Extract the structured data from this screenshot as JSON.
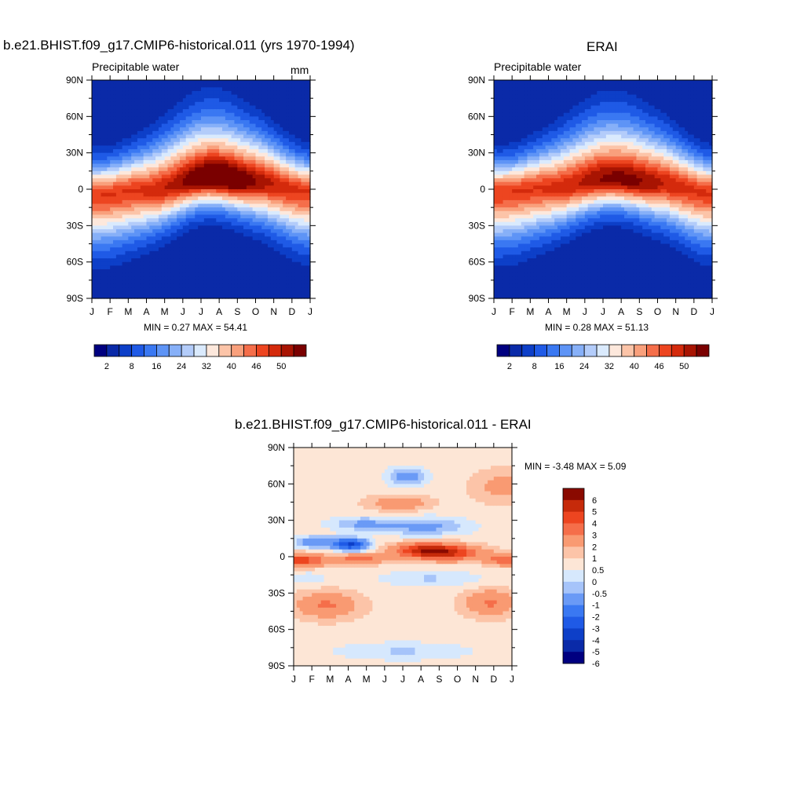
{
  "panels": [
    {
      "title": "b.e21.BHIST.f09_g17.CMIP6-historical.011 (yrs 1970-1994)",
      "variable": "Precipitable water",
      "units": "mm",
      "stats": "MIN =   0.27 MAX =  54.41"
    },
    {
      "title": "ERAI",
      "variable": "Precipitable water",
      "stats": "MIN =   0.28 MAX =  51.13"
    },
    {
      "title": "b.e21.BHIST.f09_g17.CMIP6-historical.011 - ERAI",
      "stats": "MIN =  -3.48 MAX =   5.09"
    }
  ],
  "chart_data": [
    {
      "type": "heatmap",
      "title": "b.e21.BHIST.f09_g17.CMIP6-historical.011 (yrs 1970-1994)",
      "x_ticks": [
        "J",
        "F",
        "M",
        "A",
        "M",
        "J",
        "J",
        "A",
        "S",
        "O",
        "N",
        "D",
        "J"
      ],
      "y_ticks": [
        "90N",
        "60N",
        "30N",
        "0",
        "30S",
        "60S",
        "90S"
      ],
      "colorbar_levels": [
        2,
        5,
        8,
        12,
        16,
        20,
        24,
        28,
        32,
        36,
        40,
        43,
        46,
        48,
        50,
        52
      ],
      "colorbar_labels": [
        "2",
        "8",
        "16",
        "24",
        "32",
        "40",
        "46",
        "50"
      ],
      "colors": [
        "#000080",
        "#0a2aa8",
        "#0d3fc8",
        "#1f5ae6",
        "#3a78f2",
        "#5e94f6",
        "#87b0f8",
        "#b3ccfa",
        "#daeafd",
        "#fde8dc",
        "#fcc4a8",
        "#f9a07c",
        "#f56e4a",
        "#ed4520",
        "#d42a0c",
        "#a81402",
        "#7a0000"
      ],
      "min": 0.27,
      "max": 54.41,
      "ridge": [
        {
          "month": 0,
          "lat": -5
        },
        {
          "month": 3,
          "lat": -1
        },
        {
          "month": 6.5,
          "lat": 9
        },
        {
          "month": 9,
          "lat": 6
        },
        {
          "month": 12,
          "lat": -2
        }
      ]
    },
    {
      "type": "heatmap",
      "title": "ERAI",
      "x_ticks": [
        "J",
        "F",
        "M",
        "A",
        "M",
        "J",
        "J",
        "A",
        "S",
        "O",
        "N",
        "D",
        "J"
      ],
      "y_ticks": [
        "90N",
        "60N",
        "30N",
        "0",
        "30S",
        "60S",
        "90S"
      ],
      "colorbar_levels": [
        2,
        5,
        8,
        12,
        16,
        20,
        24,
        28,
        32,
        36,
        40,
        43,
        46,
        48,
        50,
        52
      ],
      "colorbar_labels": [
        "2",
        "8",
        "16",
        "24",
        "32",
        "40",
        "46",
        "50"
      ],
      "colors": [
        "#000080",
        "#0a2aa8",
        "#0d3fc8",
        "#1f5ae6",
        "#3a78f2",
        "#5e94f6",
        "#87b0f8",
        "#b3ccfa",
        "#daeafd",
        "#fde8dc",
        "#fcc4a8",
        "#f9a07c",
        "#f56e4a",
        "#ed4520",
        "#d42a0c",
        "#a81402",
        "#7a0000"
      ],
      "min": 0.28,
      "max": 51.13,
      "ridge": [
        {
          "month": 0,
          "lat": -3
        },
        {
          "month": 3,
          "lat": 1
        },
        {
          "month": 6.5,
          "lat": 8
        },
        {
          "month": 9,
          "lat": 5
        },
        {
          "month": 12,
          "lat": -3
        }
      ]
    },
    {
      "type": "heatmap",
      "title": "b.e21.BHIST.f09_g17.CMIP6-historical.011 - ERAI",
      "x_ticks": [
        "J",
        "F",
        "M",
        "A",
        "M",
        "J",
        "J",
        "A",
        "S",
        "O",
        "N",
        "D",
        "J"
      ],
      "y_ticks": [
        "90N",
        "60N",
        "30N",
        "0",
        "30S",
        "60S",
        "90S"
      ],
      "colorbar_levels": [
        -6,
        -5,
        -4,
        -3,
        -2,
        -1,
        -0.5,
        0,
        0.5,
        1,
        2,
        3,
        4,
        5,
        6
      ],
      "colorbar_labels": [
        "6",
        "5",
        "4",
        "3",
        "2",
        "1",
        "0.5",
        "0",
        "-0.5",
        "-1",
        "-2",
        "-3",
        "-4",
        "-5",
        "-6"
      ],
      "colors": [
        "#000080",
        "#0a2aa8",
        "#0d3fc8",
        "#1f5ae6",
        "#3a78f2",
        "#6a9af6",
        "#a6c4fa",
        "#d6e8fd",
        "#fde6d6",
        "#fcc4a8",
        "#f99a72",
        "#f56e4a",
        "#ed4520",
        "#c62a0a",
        "#8a0a00"
      ],
      "min": -3.48,
      "max": 5.09
    }
  ]
}
